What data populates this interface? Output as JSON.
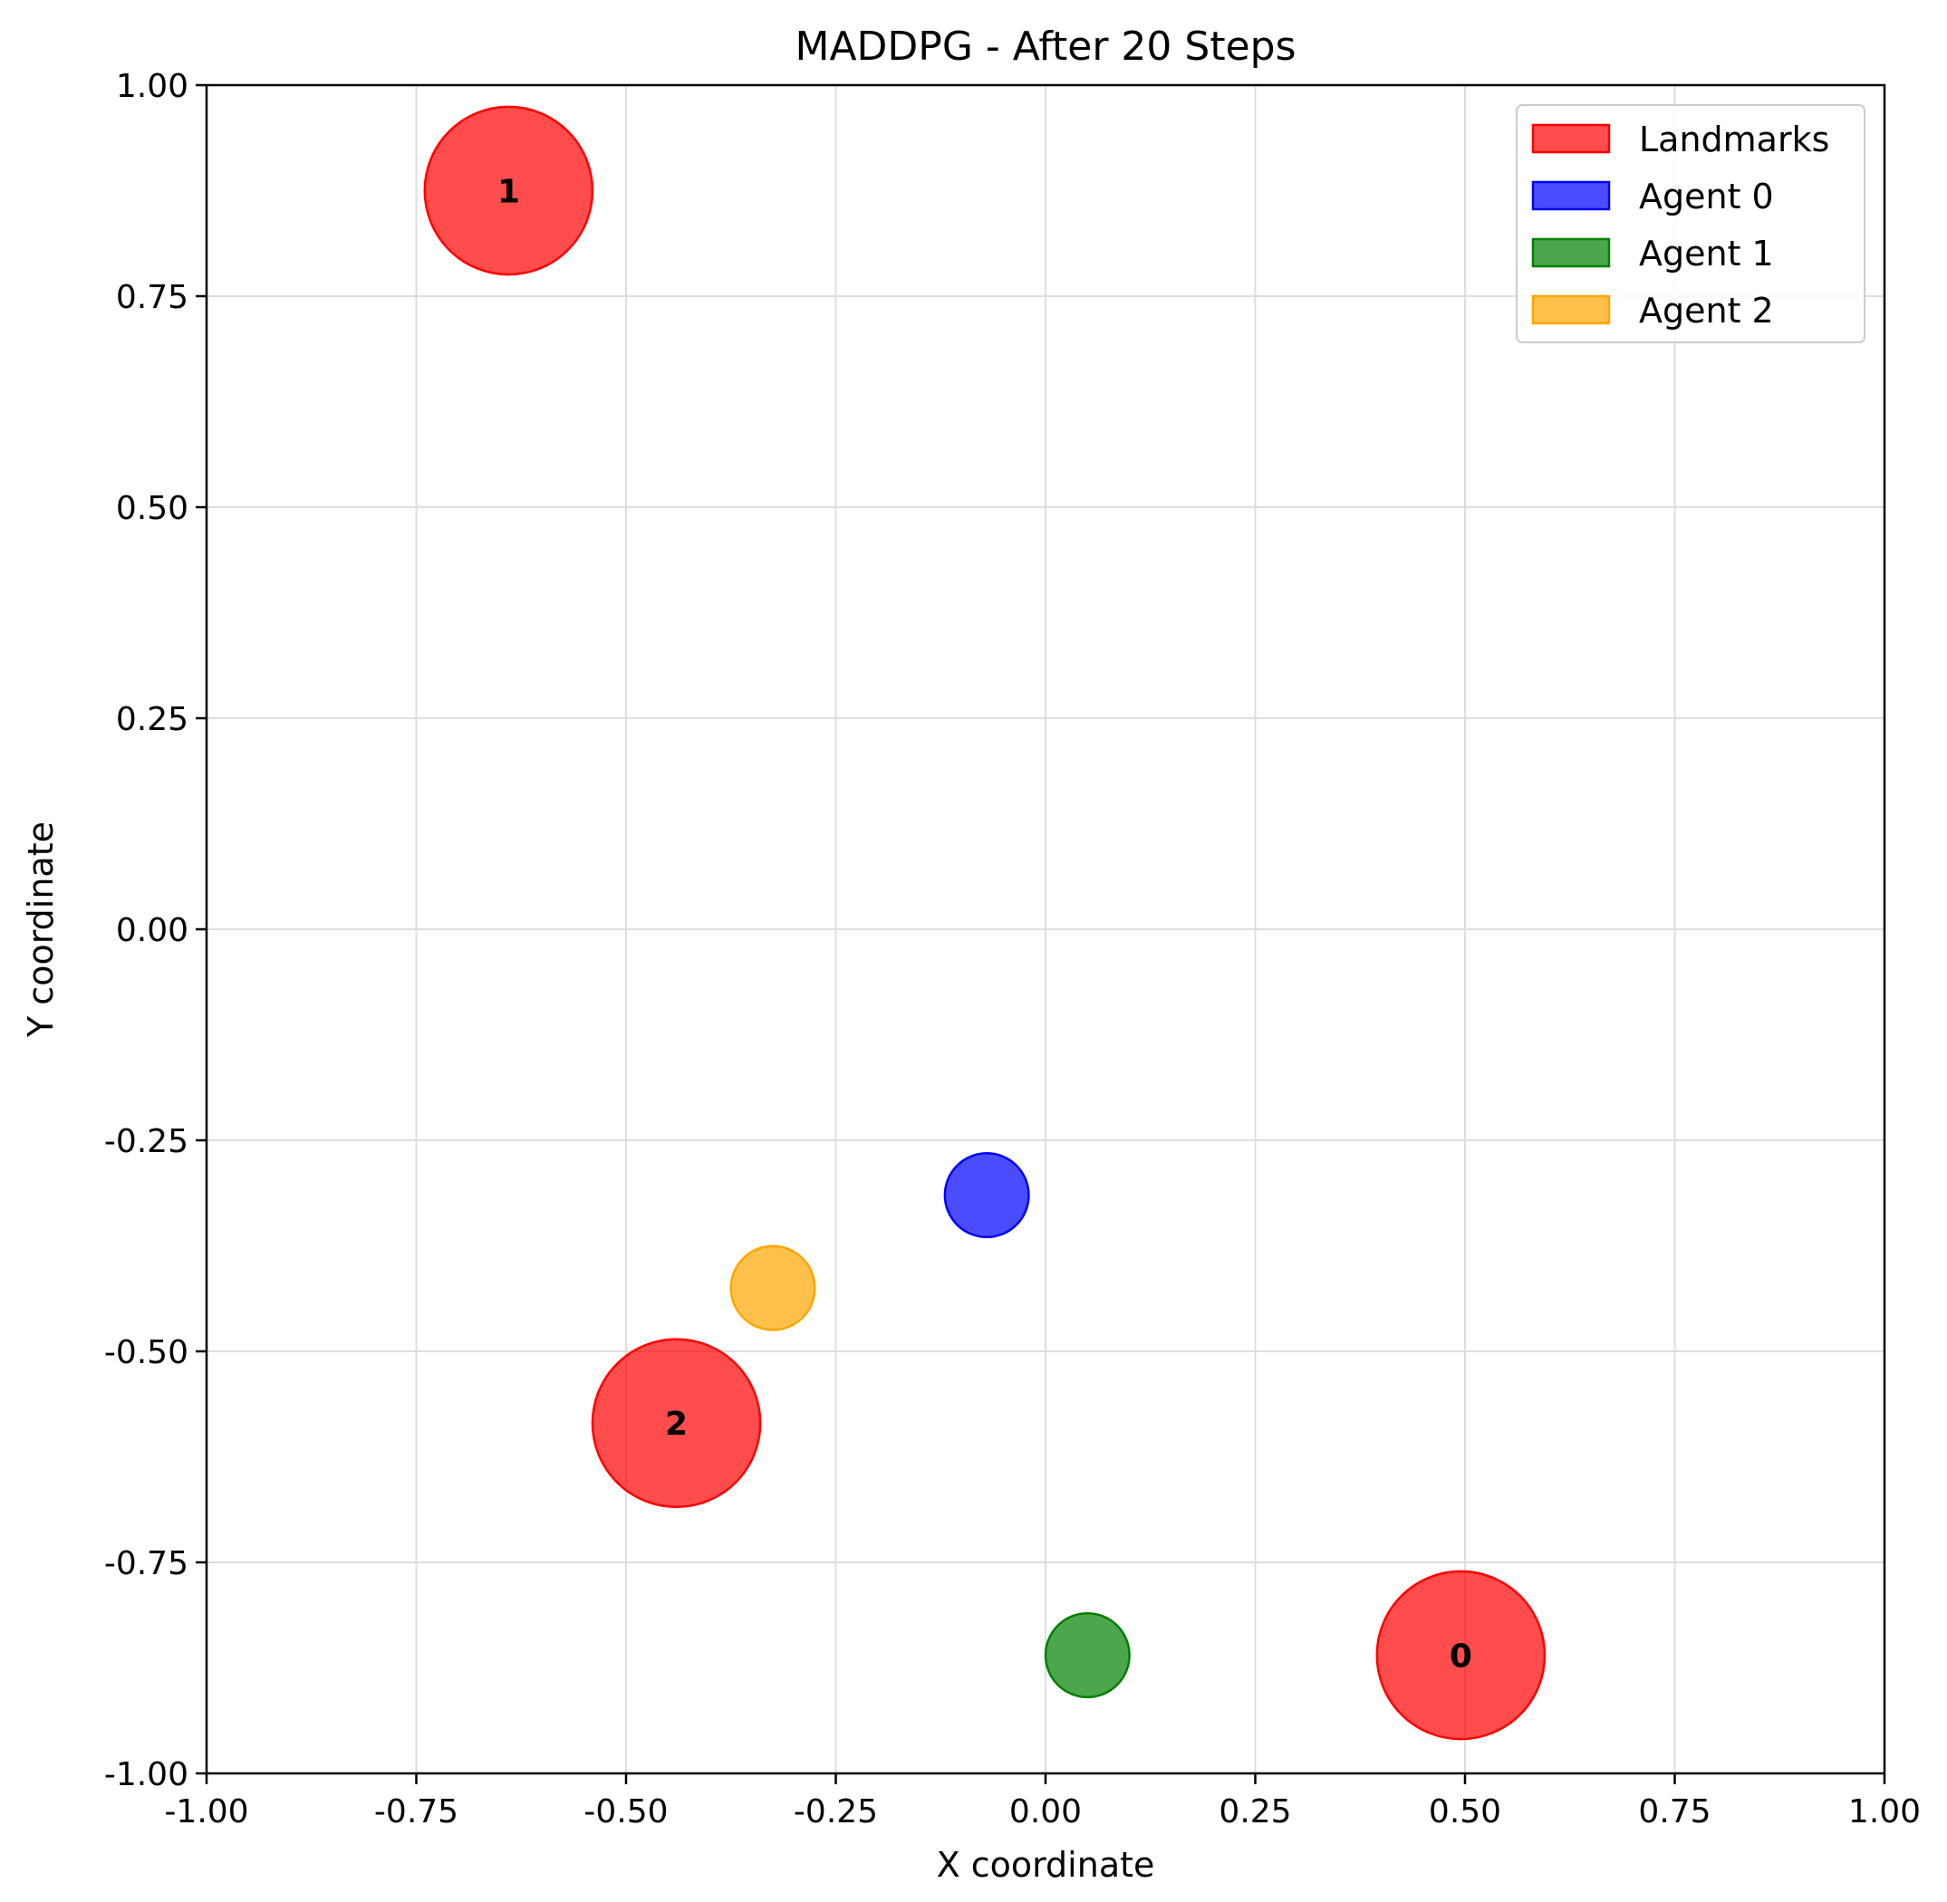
{
  "chart_data": {
    "type": "scatter",
    "title": "MADDPG - After 20 Steps",
    "xlabel": "X coordinate",
    "ylabel": "Y coordinate",
    "xlim": [
      -1.0,
      1.0
    ],
    "ylim": [
      -1.0,
      1.0
    ],
    "x_ticks": [
      "-1.00",
      "-0.75",
      "-0.50",
      "-0.25",
      "0.00",
      "0.25",
      "0.50",
      "0.75",
      "1.00"
    ],
    "y_ticks": [
      "-1.00",
      "-0.75",
      "-0.50",
      "-0.25",
      "0.00",
      "0.25",
      "0.50",
      "0.75",
      "1.00"
    ],
    "grid": true,
    "legend_position": "top-right",
    "series": [
      {
        "name": "Landmarks",
        "color": "#ff0000",
        "radius": 0.1,
        "points": [
          {
            "x": 0.495,
            "y": -0.86,
            "label": "0"
          },
          {
            "x": -0.64,
            "y": 0.875,
            "label": "1"
          },
          {
            "x": -0.44,
            "y": -0.585,
            "label": "2"
          }
        ]
      },
      {
        "name": "Agent 0",
        "color": "#0000ff",
        "radius": 0.05,
        "points": [
          {
            "x": -0.07,
            "y": -0.315
          }
        ]
      },
      {
        "name": "Agent 1",
        "color": "#008000",
        "radius": 0.05,
        "points": [
          {
            "x": 0.05,
            "y": -0.86
          }
        ]
      },
      {
        "name": "Agent 2",
        "color": "#ffa500",
        "radius": 0.05,
        "points": [
          {
            "x": -0.325,
            "y": -0.425
          }
        ]
      }
    ]
  }
}
